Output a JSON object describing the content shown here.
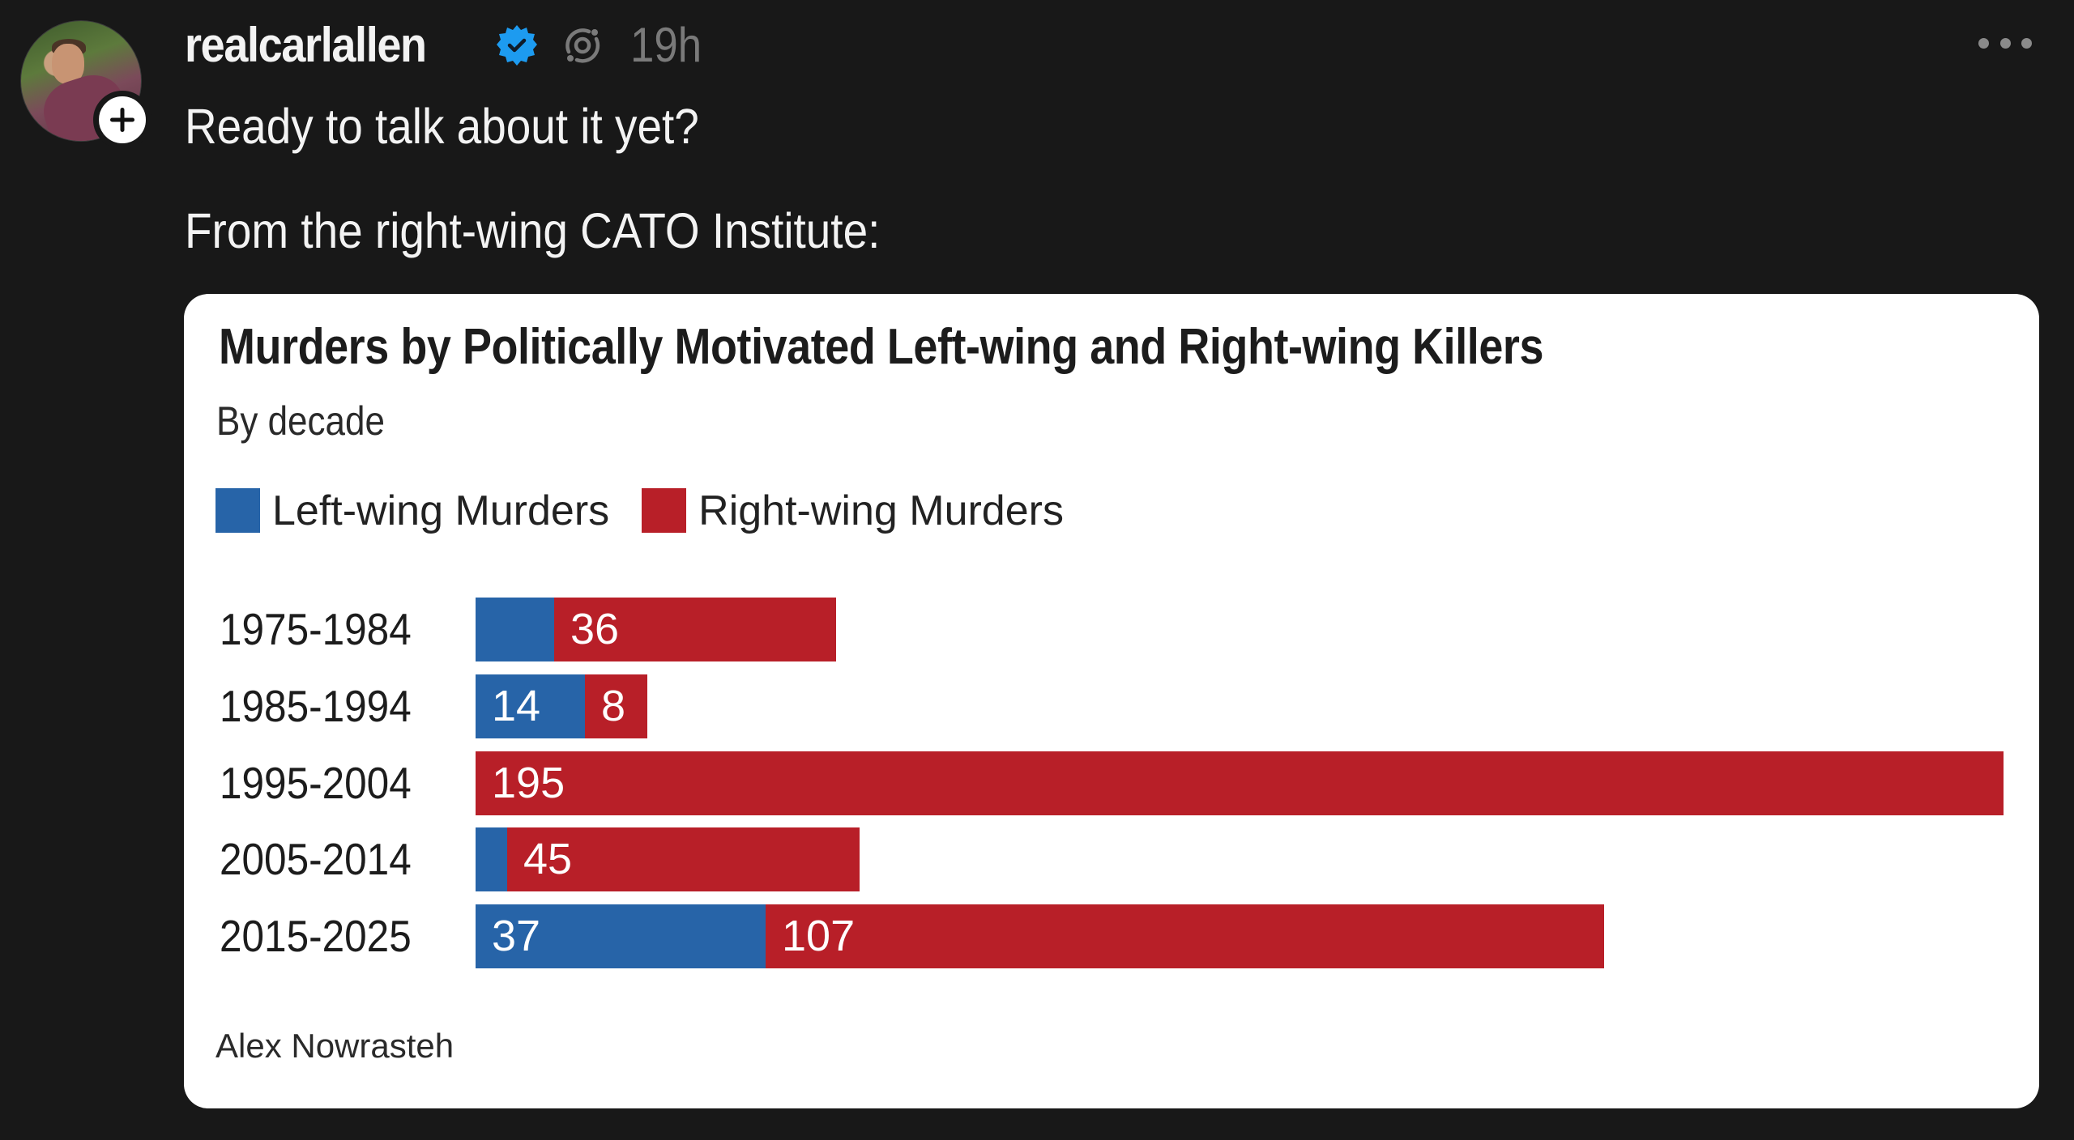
{
  "post": {
    "author": {
      "username": "realcarlallen",
      "verified": true,
      "avatar_alt": "Profile photo of realcarlallen",
      "follow_icon": "plus-icon"
    },
    "time": "19h",
    "thread_icon": "threads-repost-icon",
    "more_icon": "ellipsis-icon",
    "text_lines": [
      "Ready to talk about it yet?",
      "From the right-wing CATO Institute:"
    ]
  },
  "colors": {
    "background": "#181818",
    "text": "#f3f3f3",
    "muted": "#7a7a7a",
    "verified": "#1d9bf0",
    "left_wing": "#2764a8",
    "right_wing": "#b81f28"
  },
  "chart_data": {
    "type": "bar",
    "orientation": "horizontal",
    "stacked": true,
    "title": "Murders by Politically Motivated Left-wing and Right-wing Killers",
    "subtitle": "By decade",
    "source": "Alex Nowrasteh",
    "legend": [
      "Left-wing Murders",
      "Right-wing Murders"
    ],
    "legend_position": "top-left",
    "grid": false,
    "xlabel": "",
    "ylabel": "",
    "categories": [
      "1975-1984",
      "1985-1994",
      "1995-2004",
      "2005-2014",
      "2015-2025"
    ],
    "series": [
      {
        "name": "Left-wing Murders",
        "color": "#2764a8",
        "values": [
          10,
          14,
          0,
          4,
          37
        ],
        "labels": [
          "",
          "14",
          "",
          "",
          "37"
        ]
      },
      {
        "name": "Right-wing Murders",
        "color": "#b81f28",
        "values": [
          36,
          8,
          195,
          45,
          107
        ],
        "labels": [
          "36",
          "8",
          "195",
          "45",
          "107"
        ]
      }
    ],
    "xlim": [
      0,
      195
    ]
  }
}
